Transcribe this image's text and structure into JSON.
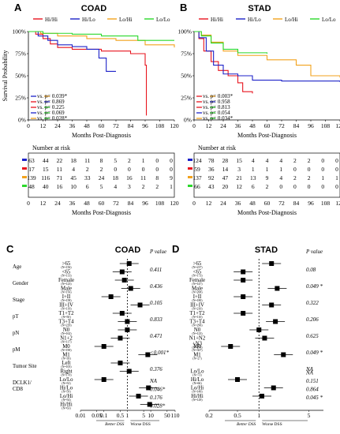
{
  "panels": {
    "A": {
      "letter": "A",
      "title": "COAD",
      "legend": [
        "Hi/Hi",
        "Hi/Lo",
        "Lo/Hi",
        "Lo/Lo"
      ],
      "colors": [
        "#e8141e",
        "#1d22c8",
        "#f2a21c",
        "#2bd82b"
      ],
      "ylabel": "Survival Probability",
      "xlabel": "Months Post-Diagnosis",
      "xticks": [
        "0",
        "12",
        "24",
        "36",
        "48",
        "60",
        "72",
        "84",
        "96",
        "108",
        "120"
      ],
      "yticks": [
        "100%",
        "75%",
        "50%",
        "25%",
        "0%"
      ],
      "pvals": [
        {
          "text": "vs.   p= 0.039*",
          "color": "#f2a21c",
          "line": "#1d22c8"
        },
        {
          "text": "vs.   p= 0.869",
          "color": "#1d22c8",
          "line": "#e8141e"
        },
        {
          "text": "vs.   p= 0.225",
          "color": "#2bd82b",
          "line": "#e8141e"
        },
        {
          "text": "vs.   p= 0.069",
          "color": "#2bd82b",
          "line": "#1d22c8"
        },
        {
          "text": "vs.   p= 0.028*",
          "color": "#2bd82b",
          "line": "#f2a21c"
        }
      ],
      "risk_title": "Number at risk",
      "risk_xlabel": "Months Post-Diagnosis",
      "risk": [
        {
          "color": "#1d22c8",
          "values": [
            "63",
            "44",
            "22",
            "18",
            "11",
            "8",
            "5",
            "2",
            "1",
            "0",
            "0"
          ]
        },
        {
          "color": "#e8141e",
          "values": [
            "17",
            "15",
            "11",
            "4",
            "2",
            "2",
            "0",
            "0",
            "0",
            "0",
            "0"
          ]
        },
        {
          "color": "#f2a21c",
          "values": [
            "139",
            "116",
            "71",
            "45",
            "33",
            "24",
            "18",
            "16",
            "11",
            "8",
            "9"
          ]
        },
        {
          "color": "#2bd82b",
          "values": [
            "48",
            "40",
            "16",
            "10",
            "6",
            "5",
            "4",
            "3",
            "2",
            "2",
            "1"
          ]
        }
      ]
    },
    "B": {
      "letter": "B",
      "title": "STAD",
      "legend": [
        "Hi/Hi",
        "Hi/Lo",
        "Lo/Hi",
        "Lo/Lo"
      ],
      "colors": [
        "#e8141e",
        "#1d22c8",
        "#f2a21c",
        "#2bd82b"
      ],
      "xlabel": "Months Post-Diagnosis",
      "xticks": [
        "0",
        "12",
        "24",
        "36",
        "48",
        "60",
        "72",
        "84",
        "96",
        "108",
        "120"
      ],
      "yticks": [
        "100%",
        "75%",
        "50%",
        "25%",
        "0%"
      ],
      "pvals": [
        {
          "text": "vs.   p= 0.003*",
          "color": "#f2a21c",
          "line": "#e8141e"
        },
        {
          "text": "vs.   p= 0.958",
          "color": "#1d22c8",
          "line": "#e8141e"
        },
        {
          "text": "vs.   p= 0.813",
          "color": "#2bd82b",
          "line": "#e8141e"
        },
        {
          "text": "vs.   p= 0.054",
          "color": "#2bd82b",
          "line": "#1d22c8"
        },
        {
          "text": "vs.   p= 0.034*",
          "color": "#2bd82b",
          "line": "#f2a21c"
        }
      ],
      "risk_title": "Number at risk",
      "risk_xlabel": "Months Post-Diagnosis",
      "risk": [
        {
          "color": "#1d22c8",
          "values": [
            "124",
            "78",
            "28",
            "15",
            "4",
            "4",
            "4",
            "2",
            "2",
            "0",
            "0"
          ]
        },
        {
          "color": "#e8141e",
          "values": [
            "59",
            "36",
            "14",
            "3",
            "1",
            "1",
            "1",
            "0",
            "0",
            "0",
            "0"
          ]
        },
        {
          "color": "#f2a21c",
          "values": [
            "137",
            "92",
            "47",
            "21",
            "13",
            "9",
            "4",
            "2",
            "2",
            "1",
            "1"
          ]
        },
        {
          "color": "#2bd82b",
          "values": [
            "66",
            "43",
            "20",
            "12",
            "6",
            "2",
            "0",
            "0",
            "0",
            "0",
            "0"
          ]
        }
      ]
    },
    "C": {
      "letter": "C",
      "title": "COAD",
      "pval_header": "P value",
      "xticks": [
        "0.01",
        "0.05",
        "0.1",
        "0.5",
        "1",
        "5",
        "10",
        "50",
        "110"
      ],
      "better": "Better DSS",
      "worse": "Worse DSS",
      "groups": [
        {
          "name": "Age",
          "pval": "0.411",
          "rows": [
            {
              "label": ">65",
              "n": "(N=156)"
            },
            {
              "label": "<65",
              "n": "(N=113)"
            }
          ]
        },
        {
          "name": "Gender",
          "pval": "0.436",
          "rows": [
            {
              "label": "Female",
              "n": "(N=123)"
            },
            {
              "label": "Male",
              "n": "(N=156)"
            }
          ]
        },
        {
          "name": "Stage",
          "pval": "0.105",
          "rows": [
            {
              "label": "I+II",
              "n": "(N=158)"
            },
            {
              "label": "III+IV",
              "n": "(N=119)"
            }
          ]
        },
        {
          "name": "pT",
          "pval": "0.833",
          "rows": [
            {
              "label": "T1+T2",
              "n": "(N=50)"
            },
            {
              "label": "T3+T4",
              "n": "(N=229)"
            }
          ]
        },
        {
          "name": "pN",
          "pval": "0.471",
          "rows": [
            {
              "label": "N0",
              "n": "(N=162)"
            },
            {
              "label": "N1+2",
              "n": "(N=117)"
            }
          ]
        },
        {
          "name": "pM",
          "pval": "<0.001*",
          "rows": [
            {
              "label": "M0",
              "n": "(N=190)"
            },
            {
              "label": "M1",
              "n": "(N=39)"
            }
          ]
        },
        {
          "name": "Tumor Site",
          "pval": "0.376",
          "rows": [
            {
              "label": "Left",
              "n": "(N=105)"
            },
            {
              "label": "Right",
              "n": "(N=170)"
            }
          ]
        },
        {
          "name": "DCLK1/\nCD8",
          "pval": "NA",
          "rows": [
            {
              "label": "Lo/Lo",
              "n": "(N=52)"
            },
            {
              "label": "Hi/Lo",
              "n": "(N=59)"
            },
            {
              "label": "Lo/Hi",
              "n": "(N=54)"
            },
            {
              "label": "Hi/Hi",
              "n": "(N=63)"
            }
          ],
          "pvals_extra": [
            "NA",
            "0.046*",
            "0.176",
            "0.028*"
          ]
        }
      ],
      "chart_data": {
        "type": "forest",
        "scale": "log",
        "xlim": [
          0.01,
          110
        ],
        "hr": [
          1.2,
          0.6,
          0.75,
          1.4,
          0.2,
          3.5,
          0.6,
          1.0,
          1.0,
          0.5,
          0.1,
          7.5,
          0.5,
          1.2,
          0.1,
          8,
          3,
          9
        ]
      }
    },
    "D": {
      "letter": "D",
      "title": "STAD",
      "pval_header": "P value",
      "xticks": [
        "0.2",
        "0.5",
        "1",
        "5"
      ],
      "better": "Better DSS",
      "worse": "Worse DSS",
      "groups": [
        {
          "name": "",
          "pval": "0.08",
          "rows": [
            {
              "label": ">65",
              "n": "(N=237)"
            },
            {
              "label": "<65",
              "n": "(N=173)"
            }
          ]
        },
        {
          "name": "",
          "pval": "0.049 *",
          "rows": [
            {
              "label": "Female",
              "n": "(N=147)"
            },
            {
              "label": "Male",
              "n": "(N=268)"
            }
          ]
        },
        {
          "name": "",
          "pval": "0.322",
          "rows": [
            {
              "label": "I+II",
              "n": "(N=180)"
            },
            {
              "label": "III+IV",
              "n": "(N=210)"
            }
          ]
        },
        {
          "name": "",
          "pval": "0.206",
          "rows": [
            {
              "label": "T1+T2",
              "n": "(N=110)"
            },
            {
              "label": "T3+T4",
              "n": "(N=296)"
            }
          ]
        },
        {
          "name": "",
          "pval": "0.625",
          "rows": [
            {
              "label": "N0",
              "n": "(N=123)"
            },
            {
              "label": "N1+N2\n+N3",
              "n": "(N=274)"
            }
          ]
        },
        {
          "name": "",
          "pval": "0.049 *",
          "rows": [
            {
              "label": "M0",
              "n": "(N=367)"
            },
            {
              "label": "M1",
              "n": "(N=27)"
            }
          ]
        },
        {
          "name": "",
          "pval": "NA",
          "rows": [
            {
              "label": "",
              "n": ""
            }
          ]
        },
        {
          "name": "",
          "pval": "NA",
          "rows": [
            {
              "label": "Lo/Lo",
              "n": "(N=73)"
            },
            {
              "label": "Hi/Lo",
              "n": "(N=66)"
            },
            {
              "label": "Lo/Hi",
              "n": "(N=149)"
            },
            {
              "label": "Hi/Hi",
              "n": "(N=129)"
            }
          ],
          "pvals_extra": [
            "NA",
            "0.151",
            "0.864",
            "0.045 *"
          ]
        }
      ],
      "chart_data": {
        "type": "forest",
        "scale": "log",
        "xlim": [
          0.2,
          8
        ],
        "hr": [
          1.5,
          0.6,
          0.6,
          1.8,
          0.6,
          1.5,
          0.6,
          1.7,
          1.0,
          1.2,
          0.4,
          2.2,
          null,
          null,
          0.5,
          1.6,
          1.1,
          2.0
        ]
      }
    }
  }
}
